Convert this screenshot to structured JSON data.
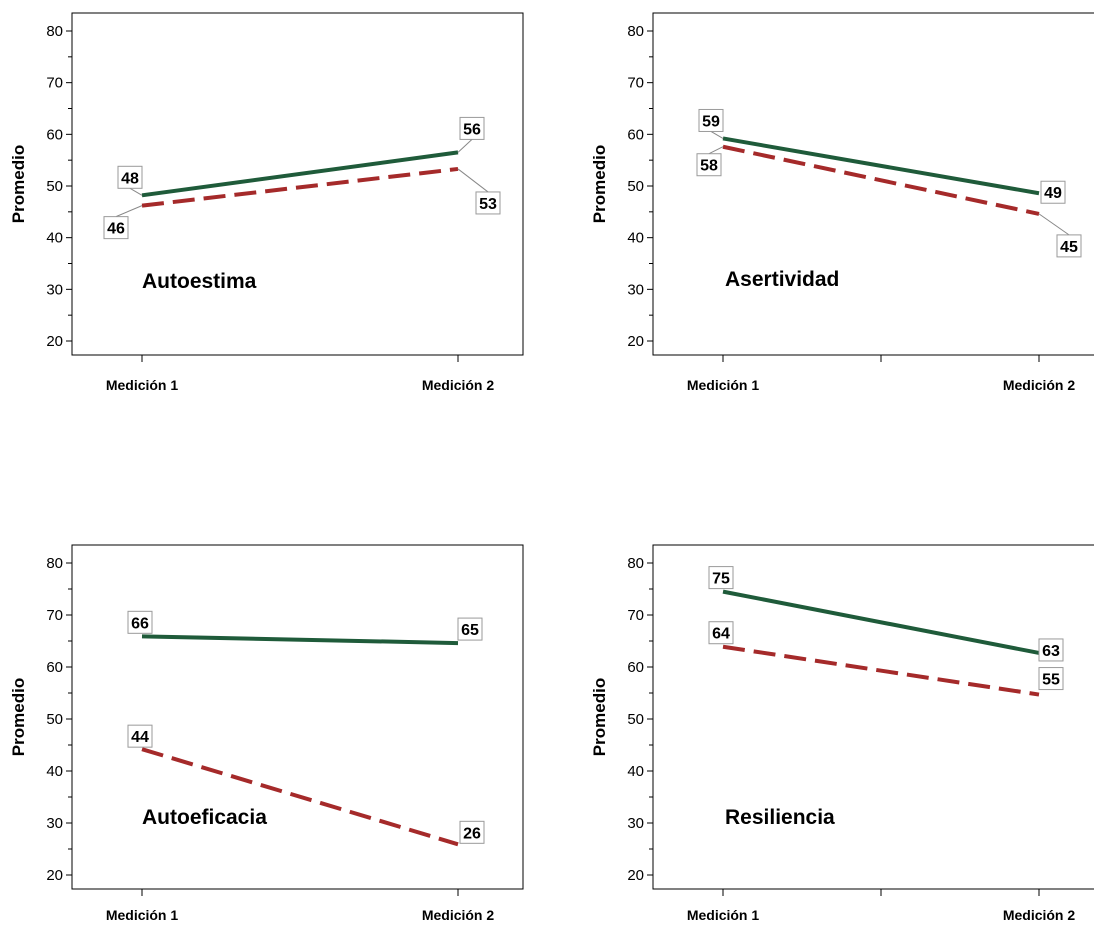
{
  "chart_data": [
    {
      "type": "line",
      "annotation": "Autoestima",
      "ylabel": "Promedio",
      "categories": [
        "Medición 1",
        "Medición 2"
      ],
      "ylim": [
        20,
        80
      ],
      "yticks": [
        20,
        30,
        40,
        50,
        60,
        70,
        80
      ],
      "series": [
        {
          "values": [
            48.2,
            56.5
          ],
          "labels": [
            "48",
            "56"
          ],
          "color": "#1f5b3a",
          "dash": "solid"
        },
        {
          "values": [
            46.2,
            53.3
          ],
          "labels": [
            "46",
            "53"
          ],
          "color": "#a52a2a",
          "dash": "dashed"
        }
      ]
    },
    {
      "type": "line",
      "annotation": "Asertividad",
      "ylabel": "Promedio",
      "categories": [
        "Medición 1",
        "Medición 2"
      ],
      "ylim": [
        20,
        80
      ],
      "yticks": [
        20,
        30,
        40,
        50,
        60,
        70,
        80
      ],
      "series": [
        {
          "values": [
            59.2,
            48.6
          ],
          "labels": [
            "59",
            "49"
          ],
          "color": "#1f5b3a",
          "dash": "solid"
        },
        {
          "values": [
            57.6,
            44.6
          ],
          "labels": [
            "58",
            "45"
          ],
          "color": "#a52a2a",
          "dash": "dashed"
        }
      ]
    },
    {
      "type": "line",
      "annotation": "Autoeficacia",
      "ylabel": "Promedio",
      "categories": [
        "Medición 1",
        "Medición 2"
      ],
      "ylim": [
        20,
        80
      ],
      "yticks": [
        20,
        30,
        40,
        50,
        60,
        70,
        80
      ],
      "series": [
        {
          "values": [
            65.9,
            64.6
          ],
          "labels": [
            "66",
            "65"
          ],
          "color": "#1f5b3a",
          "dash": "solid"
        },
        {
          "values": [
            44.2,
            25.9
          ],
          "labels": [
            "44",
            "26"
          ],
          "color": "#a52a2a",
          "dash": "dashed"
        }
      ]
    },
    {
      "type": "line",
      "annotation": "Resiliencia",
      "ylabel": "Promedio",
      "categories": [
        "Medición 1",
        "Medición 2"
      ],
      "ylim": [
        20,
        80
      ],
      "yticks": [
        20,
        30,
        40,
        50,
        60,
        70,
        80
      ],
      "series": [
        {
          "values": [
            74.5,
            62.7
          ],
          "labels": [
            "75",
            "63"
          ],
          "color": "#1f5b3a",
          "dash": "solid"
        },
        {
          "values": [
            63.9,
            54.7
          ],
          "labels": [
            "64",
            "55"
          ],
          "color": "#a52a2a",
          "dash": "dashed"
        }
      ]
    }
  ]
}
